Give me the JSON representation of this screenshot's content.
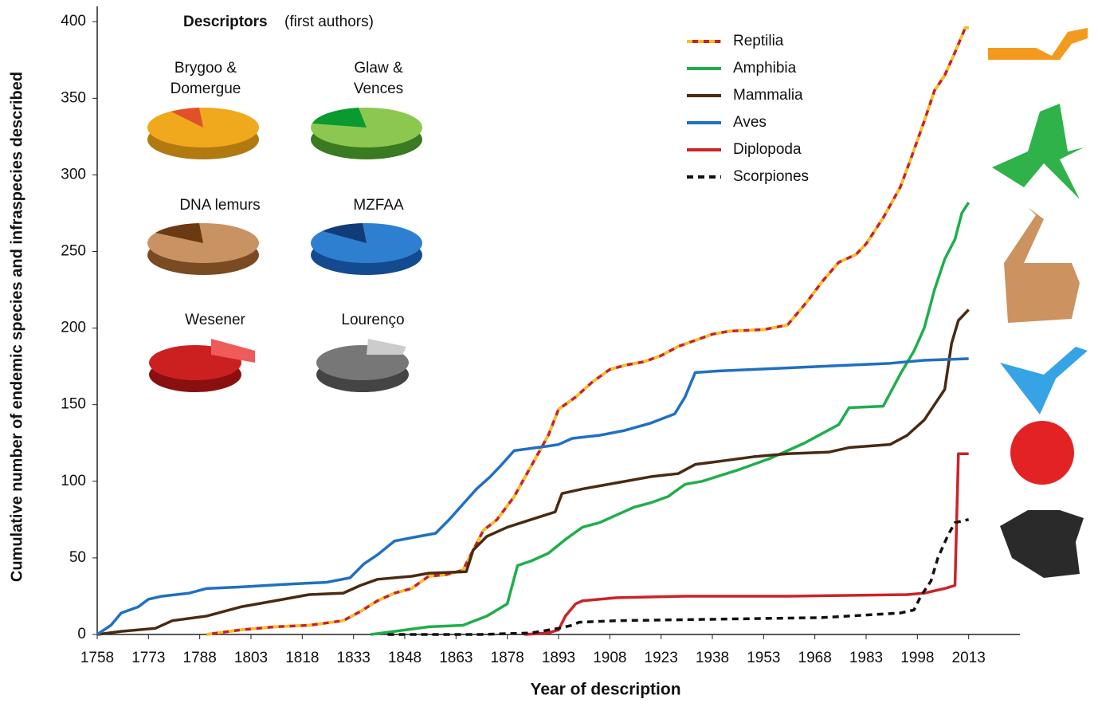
{
  "chart_data": {
    "type": "line",
    "xlabel": "Year of description",
    "ylabel": "Cumulative number of endemic species and infraspecies described",
    "xlim": [
      1758,
      2028
    ],
    "ylim": [
      0,
      410
    ],
    "xticks": [
      1758,
      1773,
      1788,
      1803,
      1818,
      1833,
      1848,
      1863,
      1878,
      1893,
      1908,
      1923,
      1938,
      1953,
      1968,
      1983,
      1998,
      2013
    ],
    "yticks": [
      0,
      50,
      100,
      150,
      200,
      250,
      300,
      350,
      400
    ],
    "legend": "top-right",
    "inset_title": "Descriptors",
    "inset_subtitle": "(first authors)",
    "inset_labels": [
      "Brygoo & Domergue",
      "Glaw & Vences",
      "DNA lemurs",
      "MZFAA",
      "Wesener",
      "Lourenço"
    ],
    "series": [
      {
        "name": "Reptilia",
        "color": "#c8202a",
        "dash_color": "#f6c21c",
        "style": "solid",
        "x": [
          1790,
          1800,
          1810,
          1820,
          1830,
          1835,
          1840,
          1845,
          1850,
          1855,
          1860,
          1865,
          1868,
          1871,
          1875,
          1880,
          1885,
          1890,
          1893,
          1898,
          1903,
          1908,
          1913,
          1918,
          1923,
          1928,
          1933,
          1938,
          1943,
          1953,
          1960,
          1963,
          1966,
          1970,
          1975,
          1980,
          1983,
          1988,
          1993,
          1996,
          2000,
          2003,
          2006,
          2009,
          2012,
          2013
        ],
        "values": [
          0,
          3,
          5,
          6,
          9,
          15,
          22,
          27,
          30,
          38,
          39,
          42,
          55,
          68,
          75,
          90,
          110,
          130,
          147,
          155,
          165,
          173,
          176,
          178,
          182,
          188,
          192,
          196,
          198,
          199,
          202,
          210,
          218,
          230,
          243,
          248,
          255,
          272,
          292,
          310,
          335,
          355,
          365,
          380,
          396,
          396
        ]
      },
      {
        "name": "Amphibia",
        "color": "#1fae4b",
        "style": "solid",
        "x": [
          1838,
          1845,
          1855,
          1865,
          1872,
          1878,
          1881,
          1885,
          1890,
          1895,
          1900,
          1905,
          1910,
          1915,
          1920,
          1925,
          1930,
          1935,
          1945,
          1955,
          1965,
          1975,
          1978,
          1988,
          1993,
          1997,
          2000,
          2003,
          2006,
          2009,
          2011,
          2013
        ],
        "values": [
          0,
          2,
          5,
          6,
          12,
          20,
          45,
          48,
          53,
          62,
          70,
          73,
          78,
          83,
          86,
          90,
          98,
          100,
          107,
          115,
          125,
          137,
          148,
          149,
          170,
          185,
          200,
          225,
          245,
          258,
          275,
          282
        ]
      },
      {
        "name": "Mammalia",
        "color": "#4a2a12",
        "style": "solid",
        "x": [
          1758,
          1765,
          1775,
          1780,
          1790,
          1795,
          1800,
          1810,
          1820,
          1830,
          1835,
          1840,
          1850,
          1855,
          1866,
          1868,
          1872,
          1878,
          1885,
          1892,
          1894,
          1900,
          1910,
          1920,
          1928,
          1933,
          1940,
          1950,
          1960,
          1972,
          1978,
          1990,
          1995,
          2000,
          2003,
          2006,
          2008,
          2010,
          2013
        ],
        "values": [
          0,
          2,
          4,
          9,
          12,
          15,
          18,
          22,
          26,
          27,
          32,
          36,
          38,
          40,
          41,
          55,
          64,
          70,
          75,
          80,
          92,
          95,
          99,
          103,
          105,
          111,
          113,
          116,
          118,
          119,
          122,
          124,
          130,
          140,
          150,
          160,
          190,
          205,
          212
        ]
      },
      {
        "name": "Aves",
        "color": "#1f70c1",
        "style": "solid",
        "x": [
          1758,
          1762,
          1765,
          1770,
          1773,
          1777,
          1785,
          1790,
          1800,
          1815,
          1825,
          1832,
          1836,
          1840,
          1845,
          1852,
          1857,
          1861,
          1865,
          1869,
          1873,
          1876,
          1880,
          1890,
          1893,
          1897,
          1905,
          1912,
          1920,
          1927,
          1930,
          1933,
          1940,
          1950,
          1960,
          1970,
          1980,
          1990,
          2000,
          2013
        ],
        "values": [
          0,
          6,
          14,
          18,
          23,
          25,
          27,
          30,
          31,
          33,
          34,
          37,
          46,
          52,
          61,
          64,
          66,
          75,
          85,
          95,
          103,
          110,
          120,
          123,
          124,
          128,
          130,
          133,
          138,
          144,
          155,
          171,
          172,
          173,
          174,
          175,
          176,
          177,
          179,
          180
        ]
      },
      {
        "name": "Diplopoda",
        "color": "#cc2229",
        "style": "solid",
        "x": [
          1883,
          1890,
          1893,
          1895,
          1898,
          1900,
          1910,
          1930,
          1960,
          1995,
          2000,
          2006,
          2009,
          2010,
          2013
        ],
        "values": [
          0,
          1,
          3,
          12,
          20,
          22,
          24,
          25,
          25,
          26,
          27,
          30,
          32,
          118,
          118
        ]
      },
      {
        "name": "Scorpiones",
        "color": "#111111",
        "style": "dashed",
        "x": [
          1843,
          1870,
          1885,
          1893,
          1897,
          1899,
          1910,
          1940,
          1970,
          1993,
          1997,
          1999,
          2002,
          2004,
          2007,
          2009,
          2013
        ],
        "values": [
          0,
          0,
          1,
          4,
          6,
          8,
          9,
          10,
          11,
          14,
          16,
          25,
          35,
          50,
          65,
          73,
          75
        ]
      }
    ]
  }
}
